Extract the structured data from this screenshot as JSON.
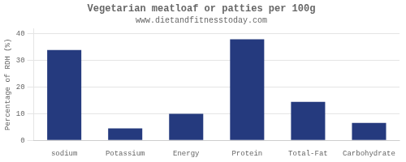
{
  "chart_data": {
    "type": "bar",
    "title": "Vegetarian meatloaf or patties per 100g",
    "subtitle": "www.dietandfitnesstoday.com",
    "categories": [
      "sodium",
      "Potassium",
      "Energy",
      "Protein",
      "Total-Fat",
      "Carbohydrate"
    ],
    "values": [
      34,
      4.5,
      10,
      38,
      14.5,
      6.5
    ],
    "color": "#253a7e",
    "ylabel": "Percentage of RDH (%)",
    "ylim": [
      0,
      42
    ],
    "yticks": [
      0,
      10,
      20,
      30,
      40
    ],
    "grid": true
  }
}
